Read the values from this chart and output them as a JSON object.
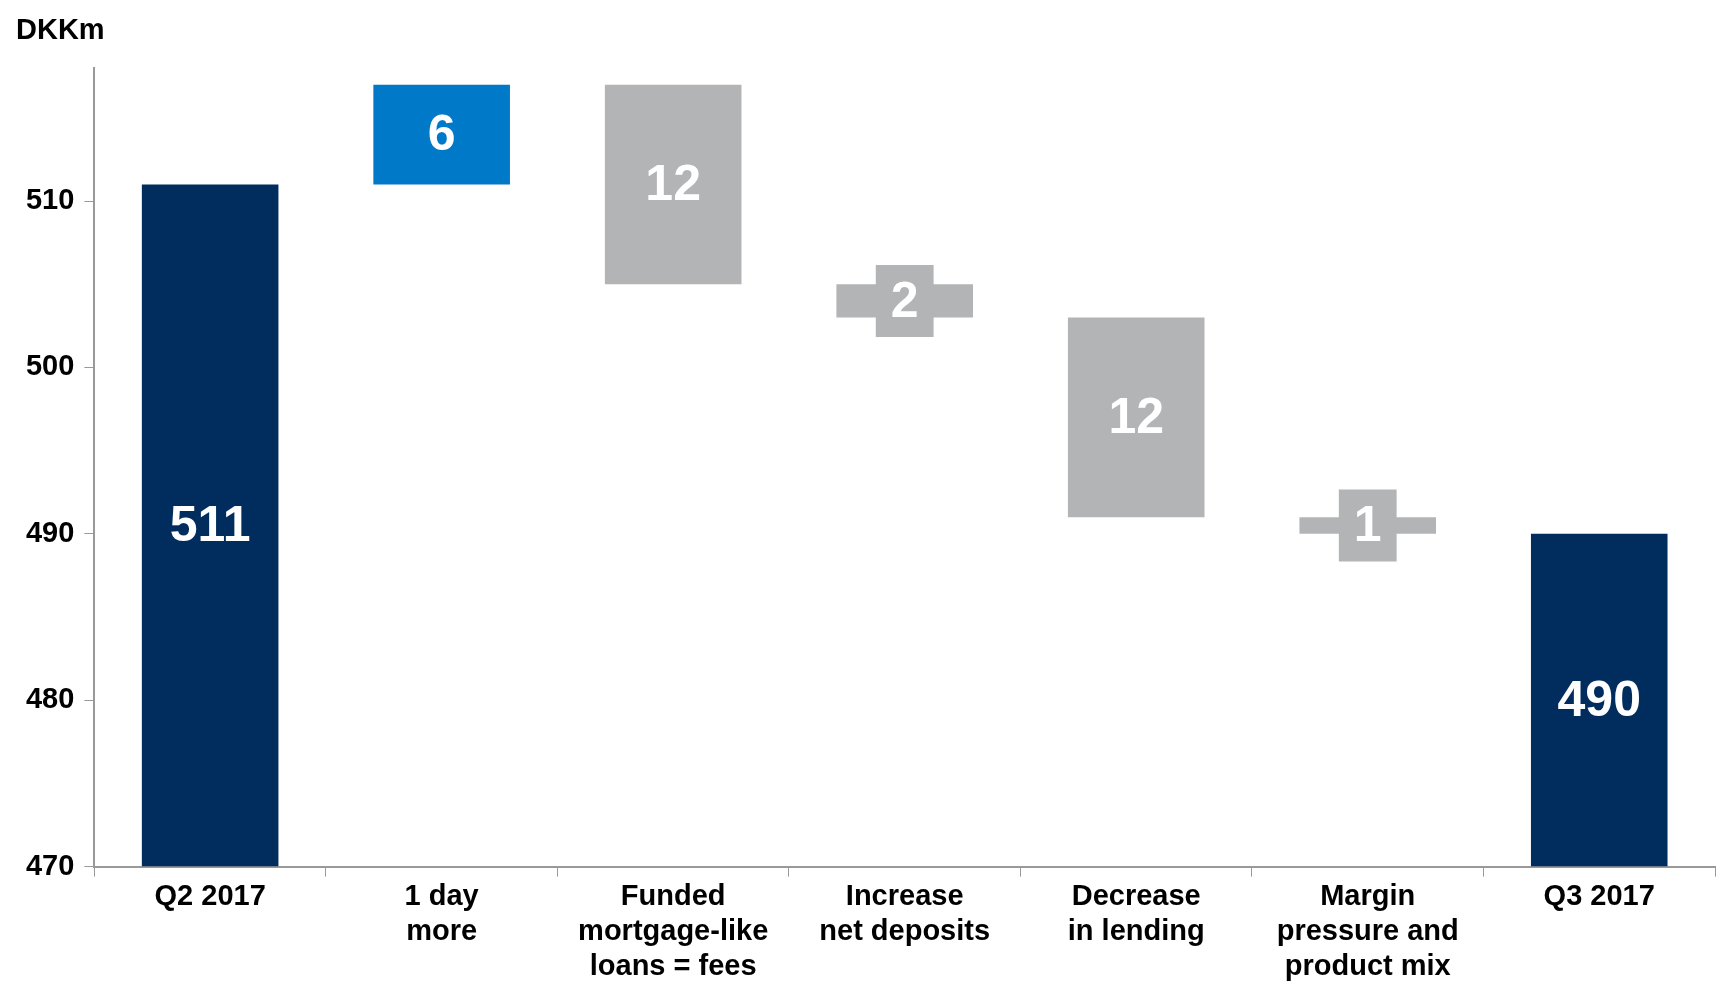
{
  "chart_data": {
    "type": "bar",
    "ylabel": "DKKm",
    "categories": [
      "Q2 2017",
      "1 day\nmore",
      "Funded\nmortgage-like\nloans = fees",
      "Increase\nnet deposits",
      "Decrease\nin lending",
      "Margin\npressure and\nproduct mix",
      "Q3 2017"
    ],
    "base": [
      470,
      511,
      517,
      505,
      503,
      491,
      470
    ],
    "values": [
      41,
      6,
      -12,
      -2,
      -12,
      -1,
      20
    ],
    "value_labels": [
      "511",
      "6",
      "12",
      "2",
      "12",
      "1",
      "490"
    ],
    "colors": [
      "#002d5e",
      "#0079c8",
      "#b3b4b6",
      "#b3b4b6",
      "#b3b4b6",
      "#b3b4b6",
      "#002d5e"
    ],
    "ylim": [
      470,
      518
    ],
    "yticks": [
      470,
      480,
      490,
      500,
      510
    ],
    "grid": false,
    "legend": false
  }
}
